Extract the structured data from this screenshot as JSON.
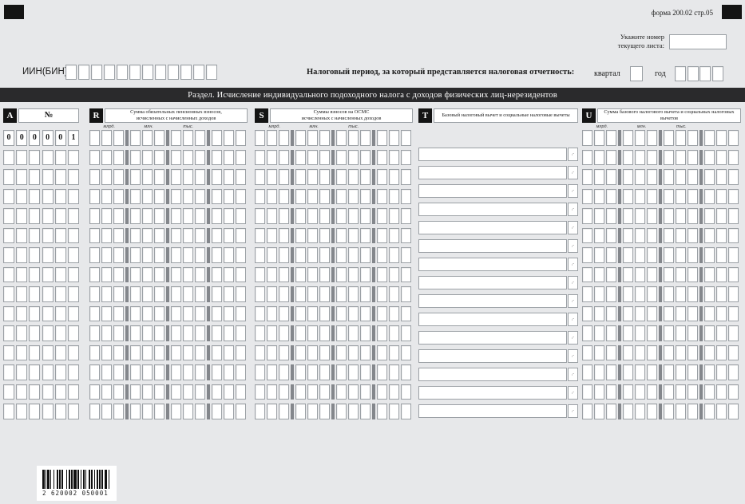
{
  "header": {
    "form_code": "форма 200.02 стр.05",
    "sheet_hint_line1": "Укажите номер",
    "sheet_hint_line2": "текущего листа:",
    "iin_label": "ИИН(БИН)",
    "iin_cell_count": 12,
    "period_label": "Налоговый период, за который представляется налоговая отчетность:",
    "quarter_label": "квартал",
    "year_label": "год",
    "year_cell_count": 4
  },
  "section_title": "Раздел. Исчисление индивидуального подоходного налога с доходов физических лиц-нерезидентов",
  "table": {
    "row_count": 15,
    "scale_labels": [
      "млрд.",
      "млн.",
      "тыс."
    ],
    "amount_suffix": ",-",
    "first_index_value": [
      "0",
      "0",
      "0",
      "0",
      "0",
      "1"
    ],
    "columns": [
      {
        "code": "A",
        "type": "index",
        "cells_per_row": 6,
        "title_lines": [
          "№"
        ]
      },
      {
        "code": "R",
        "type": "digits",
        "cells_per_row": 12,
        "title_lines": [
          "Сумма обязательных пенсионных взносов,",
          "исчисленных с начисленных доходов"
        ]
      },
      {
        "code": "S",
        "type": "digits",
        "cells_per_row": 12,
        "title_lines": [
          "Суммы взносов на ОСМС",
          "исчисленных с начисленных доходов"
        ]
      },
      {
        "code": "T",
        "type": "amount",
        "cells_per_row": 1,
        "title_lines": [
          "Базовый налоговый вычет и социальные налоговые вычеты"
        ]
      },
      {
        "code": "U",
        "type": "digits",
        "cells_per_row": 12,
        "title_lines": [
          "Сумма базового налогового вычета и социальных налоговых вычетов"
        ]
      }
    ]
  },
  "barcode": {
    "text": "2 620002 050001"
  }
}
